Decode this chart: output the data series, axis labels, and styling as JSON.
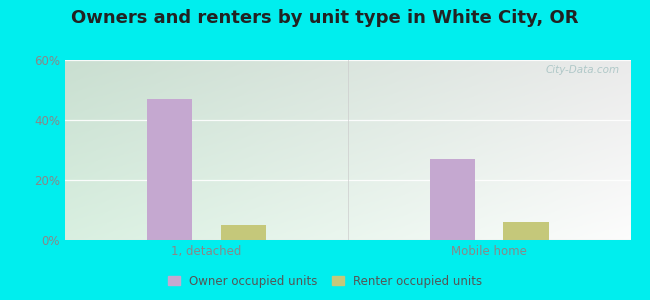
{
  "title": "Owners and renters by unit type in White City, OR",
  "categories": [
    "1, detached",
    "Mobile home"
  ],
  "owner_values": [
    47,
    27
  ],
  "renter_values": [
    5,
    6
  ],
  "owner_color": "#c5a8d0",
  "renter_color": "#c5c87a",
  "ylim": [
    0,
    60
  ],
  "yticks": [
    0,
    20,
    40,
    60
  ],
  "ytick_labels": [
    "0%",
    "20%",
    "40%",
    "60%"
  ],
  "bar_width": 0.08,
  "outer_color": "#00eeee",
  "title_fontsize": 13,
  "legend_label_owner": "Owner occupied units",
  "legend_label_renter": "Renter occupied units",
  "watermark": "City-Data.com",
  "group_centers": [
    0.25,
    0.75
  ],
  "bg_colors_left": [
    "#c8eaca",
    "#e8f5e0"
  ],
  "bg_colors_right": [
    "#daf0f0",
    "#f5fffe"
  ]
}
